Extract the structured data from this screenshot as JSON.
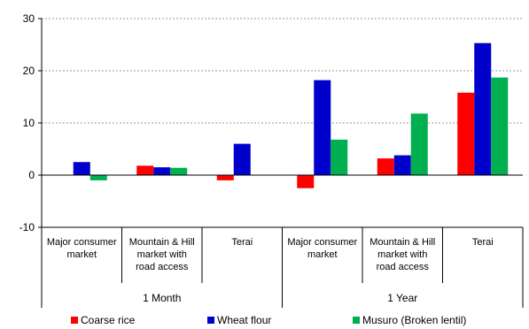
{
  "chart_data": {
    "type": "bar",
    "categories": [
      [
        "Major consumer",
        "market"
      ],
      [
        "Mountain & Hill",
        "market with",
        "road access"
      ],
      [
        "Terai"
      ],
      [
        "Major consumer",
        "market"
      ],
      [
        "Mountain & Hill",
        "market with",
        "road access"
      ],
      [
        "Terai"
      ]
    ],
    "groups": [
      {
        "label": "1 Month",
        "span": [
          0,
          2
        ]
      },
      {
        "label": "1 Year",
        "span": [
          3,
          5
        ]
      }
    ],
    "series": [
      {
        "name": "Coarse rice",
        "color": "#ff0000",
        "values": [
          0,
          1.8,
          -1.0,
          -2.5,
          3.2,
          15.8
        ]
      },
      {
        "name": "Wheat flour",
        "color": "#0000cc",
        "values": [
          2.5,
          1.5,
          6.0,
          18.2,
          3.8,
          25.3
        ]
      },
      {
        "name": "Musuro (Broken lentil)",
        "color": "#00b050",
        "values": [
          -1.0,
          1.4,
          0,
          6.8,
          11.8,
          18.7
        ]
      }
    ],
    "ylim": [
      -10,
      30
    ],
    "yticks": [
      -10,
      0,
      10,
      20,
      30
    ],
    "grid": true,
    "legend_position": "bottom"
  }
}
